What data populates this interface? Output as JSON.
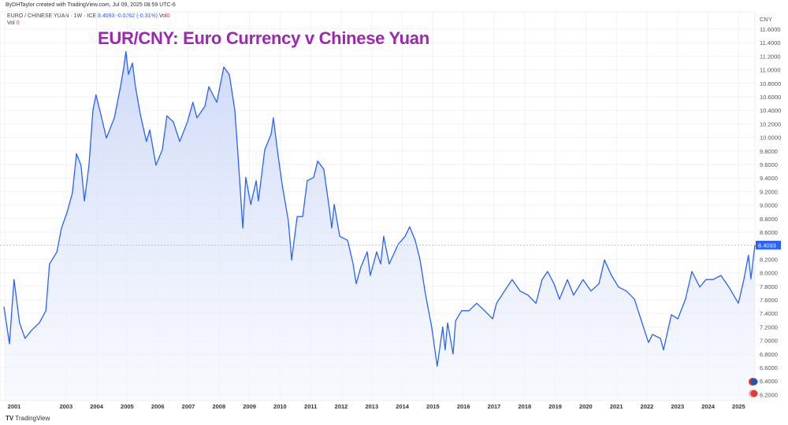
{
  "header": {
    "attribution": "ByDHTaylor created with TradingView.com, Jul 09, 2025 08:59 UTC-6",
    "symbol": "EURO / CHINESE YUAN · 1W · ICE",
    "last": "8.4093",
    "change": "-0.0262 (-0.31%)",
    "vol_inline_label": "Vol",
    "vol_inline_value": "0",
    "vol_label": "Vol",
    "vol_value": "0"
  },
  "branding": {
    "logo": "TV",
    "name": "TradingView"
  },
  "colors": {
    "line": "#2962ff",
    "title": "#9c27b0",
    "price_tag": "#2962ff",
    "fill": "#dfe6fb"
  },
  "icons": [
    "euro-flag-icon",
    "china-flag-icon"
  ],
  "chart_data": {
    "type": "area",
    "title": "EUR/CNY: Euro Currency v Chinese Yuan",
    "ylabel": "CNY",
    "xlabel": "",
    "ylim": [
      6.2,
      11.6
    ],
    "xlim": [
      2001,
      2025.55
    ],
    "grid": true,
    "last_price": 8.4093,
    "y_ticks": [
      "11.6000",
      "11.4000",
      "11.2000",
      "11.0000",
      "10.8000",
      "10.6000",
      "10.4000",
      "10.2000",
      "10.0000",
      "9.8000",
      "9.6000",
      "9.4000",
      "9.2000",
      "9.0000",
      "8.8000",
      "8.6000",
      "8.2000",
      "8.0000",
      "7.8000",
      "7.6000",
      "7.4000",
      "7.2000",
      "7.0000",
      "6.8000",
      "6.6000",
      "6.4000",
      "6.2000"
    ],
    "x_ticks": [
      "2001",
      "2003",
      "2004",
      "2005",
      "2006",
      "2007",
      "2008",
      "2009",
      "2010",
      "2011",
      "2012",
      "2013",
      "2014",
      "2015",
      "2016",
      "2017",
      "2018",
      "2019",
      "2020",
      "2021",
      "2022",
      "2023",
      "2024",
      "2025"
    ],
    "series": [
      {
        "points": [
          [
            2000.97,
            7.5
          ],
          [
            2001.15,
            6.95
          ],
          [
            2001.3,
            7.9
          ],
          [
            2001.48,
            7.26
          ],
          [
            2001.66,
            7.03
          ],
          [
            2001.87,
            7.15
          ],
          [
            2002.13,
            7.26
          ],
          [
            2002.34,
            7.44
          ],
          [
            2002.46,
            8.13
          ],
          [
            2002.7,
            8.31
          ],
          [
            2002.85,
            8.66
          ],
          [
            2003.03,
            8.89
          ],
          [
            2003.21,
            9.18
          ],
          [
            2003.34,
            9.76
          ],
          [
            2003.49,
            9.59
          ],
          [
            2003.6,
            9.06
          ],
          [
            2003.75,
            9.59
          ],
          [
            2003.88,
            10.4
          ],
          [
            2003.98,
            10.63
          ],
          [
            2004.14,
            10.34
          ],
          [
            2004.32,
            9.99
          ],
          [
            2004.58,
            10.29
          ],
          [
            2004.78,
            10.75
          ],
          [
            2004.89,
            11.04
          ],
          [
            2004.96,
            11.27
          ],
          [
            2005.04,
            10.93
          ],
          [
            2005.17,
            11.1
          ],
          [
            2005.27,
            10.75
          ],
          [
            2005.43,
            10.34
          ],
          [
            2005.63,
            9.94
          ],
          [
            2005.74,
            10.11
          ],
          [
            2005.94,
            9.59
          ],
          [
            2006.15,
            9.82
          ],
          [
            2006.3,
            10.32
          ],
          [
            2006.51,
            10.23
          ],
          [
            2006.72,
            9.94
          ],
          [
            2006.97,
            10.23
          ],
          [
            2007.15,
            10.52
          ],
          [
            2007.28,
            10.29
          ],
          [
            2007.54,
            10.46
          ],
          [
            2007.67,
            10.75
          ],
          [
            2007.93,
            10.52
          ],
          [
            2008.16,
            11.04
          ],
          [
            2008.34,
            10.93
          ],
          [
            2008.52,
            10.4
          ],
          [
            2008.62,
            9.76
          ],
          [
            2008.78,
            8.66
          ],
          [
            2008.88,
            9.41
          ],
          [
            2009.04,
            9.01
          ],
          [
            2009.22,
            9.36
          ],
          [
            2009.29,
            9.06
          ],
          [
            2009.5,
            9.82
          ],
          [
            2009.71,
            10.05
          ],
          [
            2009.78,
            10.29
          ],
          [
            2009.91,
            9.82
          ],
          [
            2010.07,
            9.3
          ],
          [
            2010.27,
            8.77
          ],
          [
            2010.38,
            8.19
          ],
          [
            2010.56,
            8.83
          ],
          [
            2010.74,
            8.83
          ],
          [
            2010.89,
            9.36
          ],
          [
            2011.1,
            9.41
          ],
          [
            2011.23,
            9.65
          ],
          [
            2011.43,
            9.53
          ],
          [
            2011.61,
            8.95
          ],
          [
            2011.69,
            8.66
          ],
          [
            2011.77,
            9.01
          ],
          [
            2011.95,
            8.54
          ],
          [
            2012.21,
            8.48
          ],
          [
            2012.39,
            8.13
          ],
          [
            2012.49,
            7.84
          ],
          [
            2012.64,
            8.08
          ],
          [
            2012.85,
            8.31
          ],
          [
            2012.95,
            7.96
          ],
          [
            2013.16,
            8.31
          ],
          [
            2013.29,
            8.13
          ],
          [
            2013.39,
            8.54
          ],
          [
            2013.57,
            8.13
          ],
          [
            2013.86,
            8.42
          ],
          [
            2014.09,
            8.54
          ],
          [
            2014.24,
            8.68
          ],
          [
            2014.42,
            8.48
          ],
          [
            2014.58,
            8.19
          ],
          [
            2014.76,
            7.67
          ],
          [
            2014.96,
            7.2
          ],
          [
            2015.14,
            6.62
          ],
          [
            2015.32,
            7.2
          ],
          [
            2015.4,
            6.86
          ],
          [
            2015.48,
            7.26
          ],
          [
            2015.66,
            6.8
          ],
          [
            2015.74,
            7.29
          ],
          [
            2015.94,
            7.44
          ],
          [
            2016.18,
            7.44
          ],
          [
            2016.43,
            7.55
          ],
          [
            2016.69,
            7.44
          ],
          [
            2016.95,
            7.32
          ],
          [
            2017.08,
            7.55
          ],
          [
            2017.34,
            7.73
          ],
          [
            2017.59,
            7.9
          ],
          [
            2017.85,
            7.73
          ],
          [
            2018.11,
            7.67
          ],
          [
            2018.37,
            7.55
          ],
          [
            2018.57,
            7.9
          ],
          [
            2018.75,
            8.02
          ],
          [
            2018.96,
            7.84
          ],
          [
            2019.14,
            7.61
          ],
          [
            2019.4,
            7.9
          ],
          [
            2019.6,
            7.67
          ],
          [
            2019.91,
            7.9
          ],
          [
            2020.17,
            7.73
          ],
          [
            2020.43,
            7.84
          ],
          [
            2020.61,
            8.19
          ],
          [
            2020.84,
            7.96
          ],
          [
            2021.07,
            7.79
          ],
          [
            2021.33,
            7.73
          ],
          [
            2021.59,
            7.61
          ],
          [
            2021.84,
            7.26
          ],
          [
            2022.05,
            6.97
          ],
          [
            2022.18,
            7.09
          ],
          [
            2022.44,
            7.03
          ],
          [
            2022.54,
            6.86
          ],
          [
            2022.8,
            7.38
          ],
          [
            2023.01,
            7.32
          ],
          [
            2023.26,
            7.61
          ],
          [
            2023.47,
            8.02
          ],
          [
            2023.73,
            7.79
          ],
          [
            2023.93,
            7.9
          ],
          [
            2024.16,
            7.9
          ],
          [
            2024.42,
            7.96
          ],
          [
            2024.68,
            7.79
          ],
          [
            2024.99,
            7.55
          ],
          [
            2025.17,
            7.9
          ],
          [
            2025.32,
            8.26
          ],
          [
            2025.4,
            7.91
          ],
          [
            2025.53,
            8.41
          ]
        ]
      }
    ]
  }
}
